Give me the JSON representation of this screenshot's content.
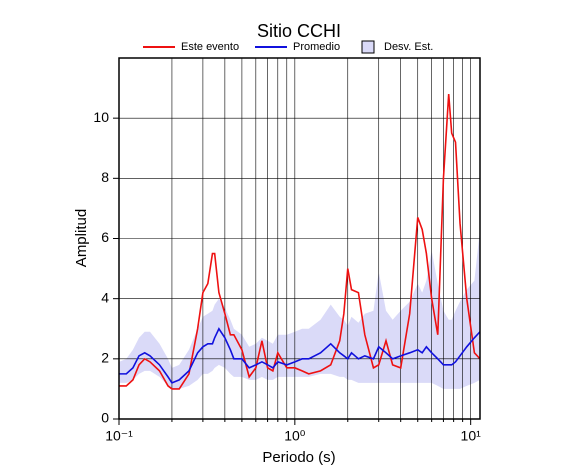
{
  "chart_data": {
    "type": "line",
    "title": "Sitio CCHI",
    "xlabel": "Periodo (s)",
    "ylabel": "Amplitud",
    "xscale": "log",
    "grid": true,
    "xlim": [
      0.1,
      11.3
    ],
    "ylim": [
      0,
      12
    ],
    "xticks": [
      {
        "value": 0.1,
        "label": "10⁻¹"
      },
      {
        "value": 1,
        "label": "10⁰"
      },
      {
        "value": 10,
        "label": "10¹"
      }
    ],
    "xminorticks": [
      0.2,
      0.3,
      0.4,
      0.5,
      0.6,
      0.7,
      0.8,
      0.9,
      2,
      3,
      4,
      5,
      6,
      7,
      8,
      9
    ],
    "yticks": [
      0,
      2,
      4,
      6,
      8,
      10
    ],
    "x": [
      0.1,
      0.11,
      0.12,
      0.13,
      0.14,
      0.15,
      0.17,
      0.19,
      0.2,
      0.22,
      0.25,
      0.28,
      0.3,
      0.32,
      0.34,
      0.35,
      0.37,
      0.4,
      0.43,
      0.45,
      0.5,
      0.55,
      0.6,
      0.65,
      0.7,
      0.75,
      0.8,
      0.9,
      1.0,
      1.1,
      1.2,
      1.4,
      1.6,
      1.8,
      1.9,
      2.0,
      2.1,
      2.3,
      2.5,
      2.8,
      3.0,
      3.3,
      3.6,
      4.0,
      4.5,
      5.0,
      5.3,
      5.6,
      6.0,
      6.5,
      7.0,
      7.5,
      7.8,
      8.2,
      8.7,
      9.5,
      10.5,
      11.3
    ],
    "band": {
      "name": "Desv. Est.",
      "color": "#dadaf8",
      "lower": [
        1.2,
        1.2,
        1.3,
        1.5,
        1.6,
        1.6,
        1.4,
        1.1,
        1.0,
        1.0,
        1.1,
        1.3,
        1.5,
        1.5,
        1.6,
        1.7,
        1.8,
        1.7,
        1.5,
        1.4,
        1.4,
        1.3,
        1.3,
        1.4,
        1.3,
        1.3,
        1.4,
        1.4,
        1.4,
        1.4,
        1.4,
        1.5,
        1.5,
        1.4,
        1.4,
        1.3,
        1.3,
        1.2,
        1.2,
        1.2,
        1.2,
        1.2,
        1.2,
        1.2,
        1.2,
        1.2,
        1.2,
        1.2,
        1.2,
        1.1,
        1.0,
        1.0,
        1.0,
        1.0,
        1.0,
        1.1,
        1.2,
        1.3
      ],
      "upper": [
        1.9,
        2.0,
        2.3,
        2.7,
        2.9,
        2.9,
        2.5,
        2.0,
        1.7,
        1.8,
        2.3,
        3.0,
        3.4,
        3.5,
        3.6,
        3.8,
        4.0,
        3.7,
        3.3,
        3.0,
        2.8,
        2.4,
        2.5,
        2.7,
        2.6,
        2.5,
        2.8,
        2.8,
        2.9,
        3.0,
        3.0,
        3.3,
        3.8,
        3.4,
        3.3,
        3.1,
        3.4,
        3.2,
        3.5,
        3.6,
        4.9,
        3.6,
        3.3,
        3.6,
        3.9,
        4.5,
        4.2,
        4.6,
        5.6,
        4.5,
        3.6,
        3.3,
        3.3,
        3.6,
        3.9,
        4.3,
        4.6,
        6.3
      ]
    },
    "series": [
      {
        "name": "Este evento",
        "color": "#ee1111",
        "values": [
          1.1,
          1.1,
          1.3,
          1.8,
          2.0,
          1.9,
          1.6,
          1.1,
          1.0,
          1.0,
          1.5,
          3.0,
          4.2,
          4.5,
          5.5,
          5.5,
          4.2,
          3.5,
          2.8,
          2.8,
          2.3,
          1.4,
          1.7,
          2.6,
          1.7,
          1.6,
          2.2,
          1.7,
          1.7,
          1.6,
          1.5,
          1.6,
          1.8,
          2.6,
          3.5,
          5.0,
          4.3,
          4.2,
          2.8,
          1.7,
          1.8,
          2.6,
          1.8,
          1.7,
          3.5,
          6.7,
          6.3,
          5.5,
          4.0,
          2.8,
          8.0,
          10.8,
          9.5,
          9.2,
          6.5,
          4.0,
          2.2,
          2.0
        ]
      },
      {
        "name": "Promedio",
        "color": "#1111dd",
        "values": [
          1.5,
          1.5,
          1.7,
          2.1,
          2.2,
          2.1,
          1.8,
          1.4,
          1.2,
          1.3,
          1.6,
          2.2,
          2.4,
          2.5,
          2.5,
          2.7,
          3.0,
          2.7,
          2.3,
          2.0,
          2.0,
          1.7,
          1.8,
          1.9,
          1.8,
          1.7,
          1.9,
          1.8,
          1.9,
          2.0,
          2.0,
          2.2,
          2.5,
          2.2,
          2.1,
          2.0,
          2.2,
          2.0,
          2.1,
          2.0,
          2.4,
          2.2,
          2.0,
          2.1,
          2.2,
          2.3,
          2.2,
          2.4,
          2.2,
          2.0,
          1.8,
          1.8,
          1.8,
          1.9,
          2.1,
          2.4,
          2.7,
          2.9
        ]
      }
    ]
  }
}
